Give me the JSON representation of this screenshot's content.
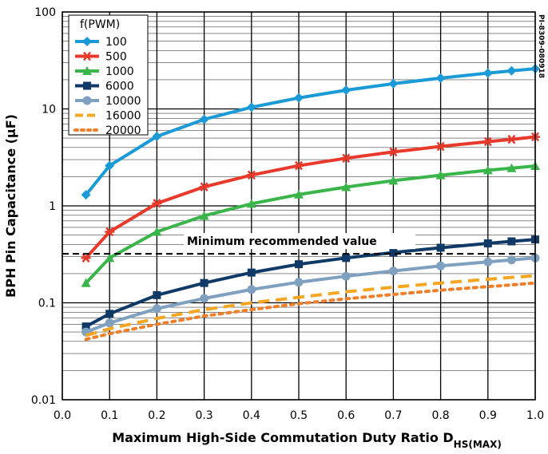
{
  "chart_data": {
    "type": "line",
    "xlabel": "Maximum High-Side Commutation Duty Ratio D",
    "xlabel_sub": "HS(MAX)",
    "ylabel": "BPH Pin Capacitance (µF)",
    "x_scale": "linear",
    "y_scale": "log",
    "xlim": [
      0.0,
      1.0
    ],
    "ylim": [
      0.01,
      100
    ],
    "x_ticks": [
      "0.0",
      "0.1",
      "0.2",
      "0.3",
      "0.4",
      "0.5",
      "0.6",
      "0.7",
      "0.8",
      "0.9",
      "1.0"
    ],
    "y_ticks": [
      "0.01",
      "0.1",
      "1",
      "10",
      "100"
    ],
    "grid": true,
    "legend_title": "f(PWM)",
    "legend_position": "top-left",
    "side_label": "PI-8309-080918",
    "annotations": [
      {
        "text": "Minimum recommended value",
        "y": 0.32,
        "style": "dashed-line"
      }
    ],
    "x": [
      0.05,
      0.1,
      0.2,
      0.3,
      0.4,
      0.5,
      0.6,
      0.7,
      0.8,
      0.9,
      0.95,
      1.0
    ],
    "series": [
      {
        "name": "100",
        "color": "#1a9ad6",
        "marker": "diamond",
        "dash": "solid",
        "values": [
          1.3,
          2.6,
          5.2,
          7.8,
          10.4,
          13.0,
          15.6,
          18.2,
          20.8,
          23.4,
          24.7,
          26.0
        ]
      },
      {
        "name": "500",
        "color": "#e8392a",
        "marker": "asterisk",
        "dash": "solid",
        "values": [
          0.29,
          0.54,
          1.06,
          1.57,
          2.08,
          2.6,
          3.1,
          3.6,
          4.1,
          4.6,
          4.85,
          5.15
        ]
      },
      {
        "name": "1000",
        "color": "#3ab54a",
        "marker": "triangle",
        "dash": "solid",
        "values": [
          0.16,
          0.29,
          0.54,
          0.79,
          1.05,
          1.31,
          1.56,
          1.82,
          2.07,
          2.33,
          2.45,
          2.58
        ]
      },
      {
        "name": "6000",
        "color": "#0f3a68",
        "marker": "square",
        "dash": "solid",
        "values": [
          0.057,
          0.077,
          0.12,
          0.16,
          0.205,
          0.25,
          0.29,
          0.33,
          0.37,
          0.41,
          0.43,
          0.45
        ]
      },
      {
        "name": "10000",
        "color": "#7fa1bf",
        "marker": "circle",
        "dash": "solid",
        "values": [
          0.05,
          0.062,
          0.087,
          0.111,
          0.137,
          0.163,
          0.188,
          0.213,
          0.24,
          0.264,
          0.277,
          0.29
        ]
      },
      {
        "name": "16000",
        "color": "#f5a623",
        "marker": "none",
        "dash": "dashed",
        "values": [
          0.046,
          0.054,
          0.069,
          0.085,
          0.1,
          0.114,
          0.13,
          0.145,
          0.16,
          0.175,
          0.183,
          0.19
        ]
      },
      {
        "name": "20000",
        "color": "#ef7f2b",
        "marker": "none",
        "dash": "dotted",
        "values": [
          0.042,
          0.048,
          0.06,
          0.073,
          0.085,
          0.098,
          0.11,
          0.122,
          0.135,
          0.147,
          0.153,
          0.16
        ]
      }
    ]
  }
}
